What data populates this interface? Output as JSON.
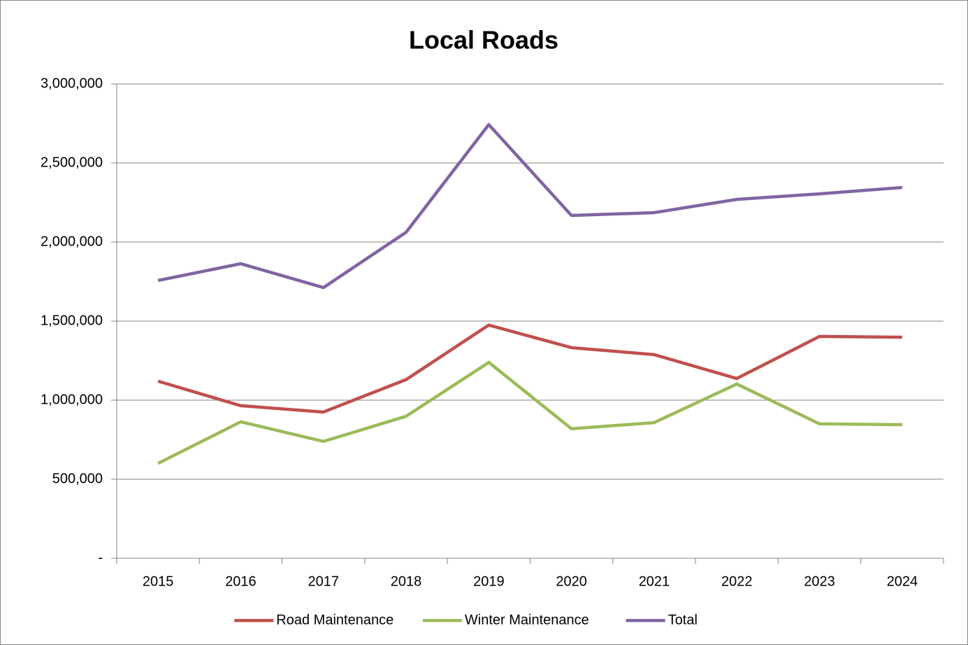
{
  "chart_data": {
    "type": "line",
    "title": "Local Roads",
    "categories": [
      "2015",
      "2016",
      "2017",
      "2018",
      "2019",
      "2020",
      "2021",
      "2022",
      "2023",
      "2024"
    ],
    "series": [
      {
        "name": "Road Maintenance",
        "color": "#c0504d",
        "values": [
          1120000,
          965000,
          925000,
          1130000,
          1475000,
          1332000,
          1288000,
          1137000,
          1403000,
          1398000
        ]
      },
      {
        "name": "Winter Maintenance",
        "color": "#9bbb59",
        "values": [
          600000,
          863000,
          739000,
          898000,
          1239000,
          819000,
          858000,
          1102000,
          850000,
          845000
        ]
      },
      {
        "name": "Total",
        "color": "#8064a2",
        "values": [
          1757000,
          1863000,
          1712000,
          2062000,
          2743000,
          2168000,
          2186000,
          2270000,
          2305000,
          2345000
        ]
      }
    ],
    "ylim": [
      0,
      3000000
    ],
    "yticks": [
      {
        "value": 0,
        "label": "-"
      },
      {
        "value": 500000,
        "label": "500,000"
      },
      {
        "value": 1000000,
        "label": "1,000,000"
      },
      {
        "value": 1500000,
        "label": "1,500,000"
      },
      {
        "value": 2000000,
        "label": "2,000,000"
      },
      {
        "value": 2500000,
        "label": "2,500,000"
      },
      {
        "value": 3000000,
        "label": "3,000,000"
      }
    ],
    "grid": true,
    "legend": "bottom"
  }
}
